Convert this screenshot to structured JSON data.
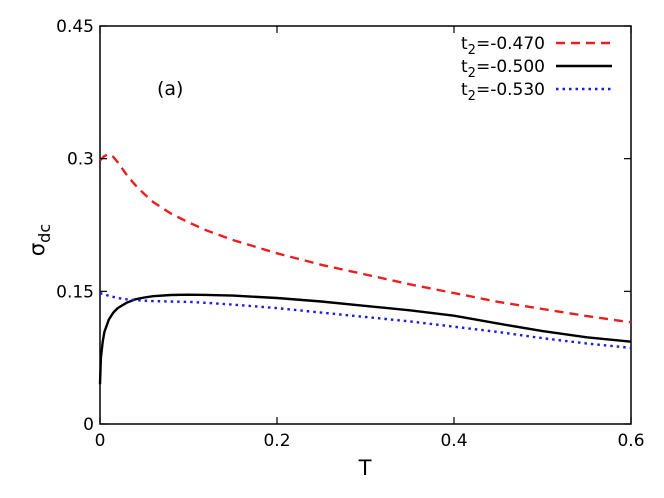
{
  "chart_data": {
    "type": "line",
    "panel_label": "(a)",
    "xlabel": "T",
    "ylabel": {
      "main": "σ",
      "sub": "dc"
    },
    "xlim": [
      0,
      0.6
    ],
    "ylim": [
      0,
      0.45
    ],
    "xticks": [
      0,
      0.2,
      0.4,
      0.6
    ],
    "xtick_labels": [
      "0",
      "0.2",
      "0.4",
      "0.6"
    ],
    "yticks": [
      0,
      0.15,
      0.3,
      0.45
    ],
    "ytick_labels": [
      "0",
      "0.15",
      "0.3",
      "0.45"
    ],
    "grid": false,
    "legend_position": "top-right",
    "series": [
      {
        "legend_main": "t",
        "legend_sub": "2",
        "legend_value": "=-0.470",
        "color": "#e8201f",
        "style": "dashed",
        "x": [
          0,
          0.005,
          0.01,
          0.015,
          0.02,
          0.03,
          0.04,
          0.05,
          0.06,
          0.08,
          0.1,
          0.12,
          0.15,
          0.2,
          0.25,
          0.3,
          0.35,
          0.4,
          0.45,
          0.5,
          0.55,
          0.6
        ],
        "y": [
          0.298,
          0.303,
          0.305,
          0.302,
          0.296,
          0.282,
          0.27,
          0.26,
          0.251,
          0.238,
          0.228,
          0.219,
          0.208,
          0.193,
          0.18,
          0.169,
          0.158,
          0.148,
          0.138,
          0.13,
          0.122,
          0.115
        ]
      },
      {
        "legend_main": "t",
        "legend_sub": "2",
        "legend_value": "=-0.500",
        "color": "#000000",
        "style": "solid",
        "x": [
          0,
          0.001,
          0.003,
          0.005,
          0.01,
          0.015,
          0.02,
          0.03,
          0.04,
          0.05,
          0.06,
          0.08,
          0.1,
          0.12,
          0.15,
          0.2,
          0.25,
          0.3,
          0.35,
          0.4,
          0.45,
          0.5,
          0.55,
          0.6
        ],
        "y": [
          0.045,
          0.075,
          0.093,
          0.104,
          0.118,
          0.126,
          0.131,
          0.137,
          0.141,
          0.143,
          0.1445,
          0.1458,
          0.1462,
          0.146,
          0.1452,
          0.1425,
          0.1385,
          0.1335,
          0.1285,
          0.1225,
          0.1135,
          0.105,
          0.098,
          0.093
        ]
      },
      {
        "legend_main": "t",
        "legend_sub": "2",
        "legend_value": "=-0.530",
        "color": "#1a1ae0",
        "style": "dotted",
        "x": [
          0,
          0.01,
          0.02,
          0.03,
          0.04,
          0.05,
          0.06,
          0.08,
          0.1,
          0.12,
          0.15,
          0.2,
          0.25,
          0.3,
          0.35,
          0.4,
          0.45,
          0.5,
          0.55,
          0.6
        ],
        "y": [
          0.148,
          0.145,
          0.1425,
          0.141,
          0.14,
          0.1395,
          0.139,
          0.1385,
          0.138,
          0.137,
          0.135,
          0.131,
          0.126,
          0.121,
          0.116,
          0.11,
          0.104,
          0.097,
          0.091,
          0.086
        ]
      }
    ]
  }
}
